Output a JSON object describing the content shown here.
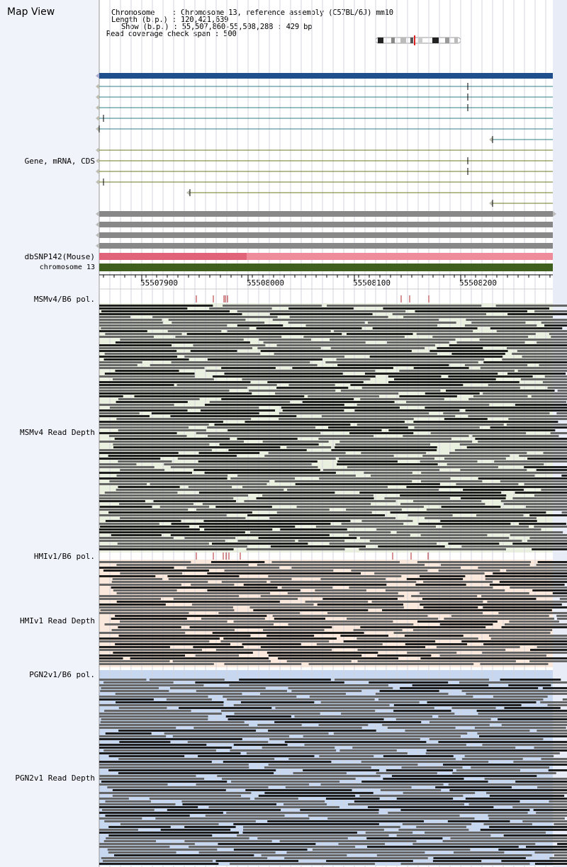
{
  "header": {
    "title": "Map View",
    "chromosome_label": "Chromosome",
    "chromosome_value": "Chromosome 13, reference assembly (C57BL/6J) mm10",
    "length_label": "Length (b.p.)",
    "length_value": "120,421,639",
    "show_label": "Show (b.p.)",
    "show_value": "55,507,860-55,508,288 : 429 bp",
    "coverage_label": "Read coverage check span",
    "coverage_value": "500"
  },
  "tracks": {
    "gene_label": "Gene, mRNA, CDS",
    "dbsnp_label": "dbSNP142(Mouse)",
    "chrom_label": "chromosome 13",
    "msm_pol_label": "MSMv4/B6 pol.",
    "msm_depth_label": "MSMv4 Read Depth",
    "hmi_pol_label": "HMIv1/B6 pol.",
    "hmi_depth_label": "HMIv1 Read Depth",
    "pgn_pol_label": "PGN2v1/B6 pol.",
    "pgn_depth_label": "PGN2v1 Read Depth"
  },
  "axis": {
    "ticks": [
      "55507900",
      "55508000",
      "55508100",
      "55508200"
    ]
  },
  "colors": {
    "gene_bar": "#1f4e8c",
    "mrna_line_teal": "#2b7f86",
    "mrna_line_olive": "#6b7a22",
    "cds_bar": "#888888",
    "dbsnp_dark": "#e0637a",
    "dbsnp_light": "#ee8c9c",
    "chrom_bar": "#3f5f1f",
    "msm_bg": "#eaf0e0",
    "hmi_bg": "#fbe8dc",
    "pgn_bg": "#c6d7ef",
    "snp_tick": "#b02a2a"
  },
  "ideogram_icon": "chromosome-ideogram-icon"
}
